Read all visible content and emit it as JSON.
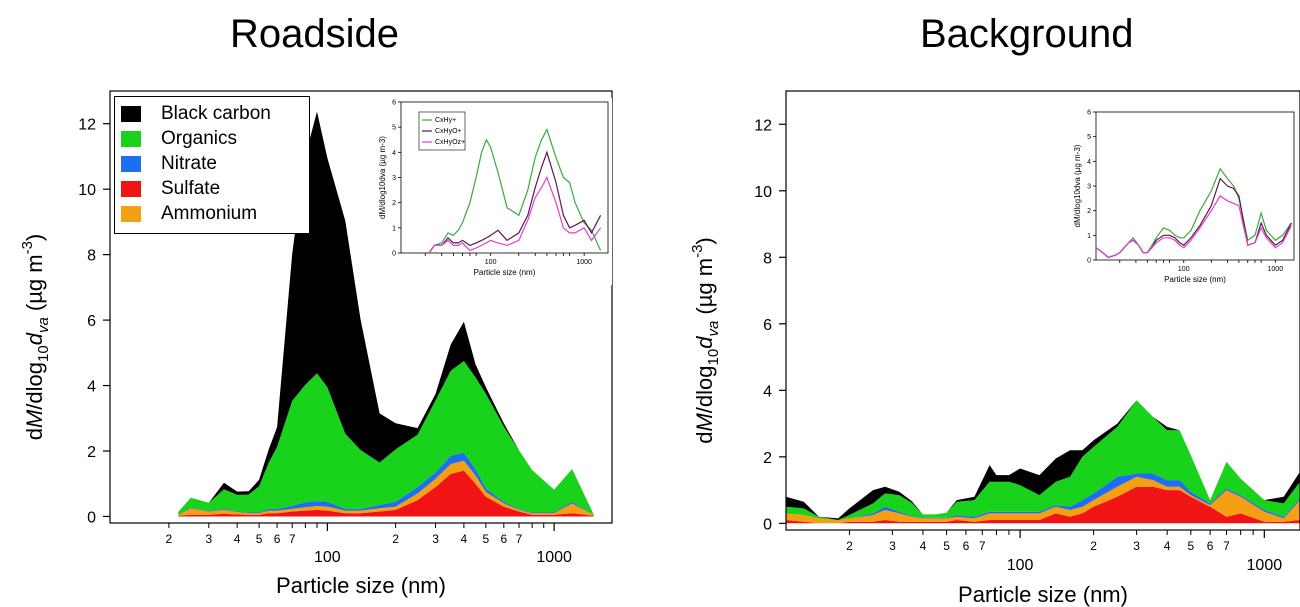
{
  "titles": {
    "left": "Roadside",
    "right": "Background"
  },
  "colors": {
    "black_carbon": "#000000",
    "organics": "#19d21b",
    "nitrate": "#1e6ef0",
    "sulfate": "#f01414",
    "ammonium": "#f5a012",
    "inset_green": "#3aaa3a",
    "inset_purple": "#5a1a4a",
    "inset_magenta": "#e040d0"
  },
  "legend": {
    "items": [
      {
        "key": "black_carbon",
        "label": "Black carbon"
      },
      {
        "key": "organics",
        "label": "Organics"
      },
      {
        "key": "nitrate",
        "label": "Nitrate"
      },
      {
        "key": "sulfate",
        "label": "Sulfate"
      },
      {
        "key": "ammonium",
        "label": "Ammonium"
      }
    ]
  },
  "axes": {
    "xlabel": "Particle size (nm)",
    "ylabel_parts": {
      "d1": "d",
      "M": "M",
      "slash": "/dlog",
      "sub10": "10",
      "d2": "d",
      "va": "va",
      "units": " (µg m",
      "exp": "-3",
      "close": ")"
    },
    "inset_xlabel": "Particle size (nm)",
    "inset_ylabel": "d M/dlog10dva (µg m-3)"
  },
  "chart_data": [
    {
      "type": "area",
      "title": "Roadside",
      "xlabel": "Particle size (nm)",
      "ylabel": "dM/dlog10dva (µg m-3)",
      "xscale": "log",
      "xlim": [
        11,
        1800
      ],
      "ylim": [
        -0.2,
        13
      ],
      "y_ticks": [
        0,
        2,
        4,
        6,
        8,
        10,
        12
      ],
      "x_ticks": [
        100,
        1000
      ],
      "x_minor_labels": [
        "2",
        "3",
        "4",
        "5",
        "6",
        "7",
        "2",
        "3",
        "4",
        "5",
        "6",
        "7"
      ],
      "x_minor_values": [
        20,
        30,
        40,
        50,
        60,
        70,
        200,
        300,
        400,
        500,
        600,
        700
      ],
      "legend_position": "top-left",
      "x": [
        22,
        25,
        30,
        35,
        40,
        45,
        50,
        55,
        60,
        70,
        80,
        90,
        100,
        120,
        140,
        170,
        200,
        250,
        300,
        350,
        400,
        450,
        500,
        600,
        700,
        800,
        1000,
        1200,
        1500
      ],
      "series": [
        {
          "name": "Sulfate",
          "values": [
            0.02,
            0.05,
            0.05,
            0.08,
            0.06,
            0.05,
            0.05,
            0.1,
            0.1,
            0.15,
            0.18,
            0.2,
            0.18,
            0.1,
            0.1,
            0.15,
            0.2,
            0.5,
            0.9,
            1.3,
            1.4,
            1.0,
            0.6,
            0.3,
            0.15,
            0.05,
            0.05,
            0.1,
            0.02
          ]
        },
        {
          "name": "Ammonium",
          "values": [
            0.02,
            0.2,
            0.1,
            0.12,
            0.08,
            0.05,
            0.05,
            0.08,
            0.08,
            0.08,
            0.1,
            0.12,
            0.12,
            0.08,
            0.08,
            0.1,
            0.1,
            0.2,
            0.25,
            0.3,
            0.3,
            0.25,
            0.15,
            0.1,
            0.05,
            0.05,
            0.05,
            0.3,
            0.02
          ]
        },
        {
          "name": "Nitrate",
          "values": [
            0.0,
            0.02,
            0.02,
            0.03,
            0.02,
            0.02,
            0.02,
            0.05,
            0.05,
            0.1,
            0.15,
            0.15,
            0.15,
            0.05,
            0.05,
            0.1,
            0.15,
            0.2,
            0.2,
            0.25,
            0.25,
            0.2,
            0.1,
            0.05,
            0.02,
            0.02,
            0.02,
            0.05,
            0.0
          ]
        },
        {
          "name": "Organics",
          "values": [
            0.1,
            0.3,
            0.25,
            0.6,
            0.5,
            0.55,
            0.8,
            1.4,
            1.9,
            3.2,
            3.6,
            3.9,
            3.5,
            2.3,
            1.8,
            1.3,
            1.6,
            1.6,
            2.2,
            2.6,
            2.8,
            2.8,
            2.9,
            2.3,
            1.8,
            1.3,
            0.7,
            1.0,
            0.0
          ]
        },
        {
          "name": "Black carbon",
          "values": [
            0.0,
            0.0,
            0.0,
            0.2,
            0.1,
            0.1,
            0.2,
            0.4,
            0.6,
            4.5,
            7.0,
            8.0,
            7.0,
            6.5,
            4.0,
            1.5,
            0.8,
            0.2,
            0.2,
            0.8,
            1.2,
            0.4,
            0.2,
            0.1,
            0.0,
            0.0,
            0.0,
            0.0,
            0.0
          ]
        }
      ],
      "inset": {
        "type": "line",
        "xlabel": "Particle size (nm)",
        "ylabel": "dM/dlog10dva (µg m-3)",
        "xscale": "log",
        "xlim": [
          11,
          1800
        ],
        "ylim": [
          0,
          6
        ],
        "y_ticks": [
          0,
          1,
          2,
          3,
          4,
          5,
          6
        ],
        "legend": [
          "CxHy+",
          "CxHyO+",
          "CxHyOz+"
        ],
        "x": [
          22,
          25,
          30,
          35,
          40,
          45,
          50,
          60,
          70,
          80,
          90,
          100,
          120,
          150,
          200,
          250,
          300,
          350,
          400,
          500,
          600,
          700,
          800,
          1000,
          1200,
          1500
        ],
        "series": [
          {
            "name": "CxHy+",
            "values": [
              0.0,
              0.3,
              0.4,
              0.8,
              0.7,
              0.9,
              1.2,
              2.0,
              3.0,
              4.0,
              4.5,
              4.2,
              3.2,
              1.8,
              1.5,
              2.5,
              3.8,
              4.5,
              4.9,
              3.8,
              3.0,
              2.8,
              2.0,
              1.2,
              0.9,
              0.1
            ]
          },
          {
            "name": "CxHyO+",
            "values": [
              0.0,
              0.3,
              0.3,
              0.6,
              0.4,
              0.4,
              0.5,
              0.3,
              0.4,
              0.5,
              0.6,
              0.7,
              0.9,
              0.5,
              0.8,
              1.5,
              2.6,
              3.4,
              4.0,
              2.8,
              1.5,
              1.0,
              1.1,
              1.3,
              0.8,
              1.5
            ]
          },
          {
            "name": "CxHyOz+",
            "values": [
              0.0,
              0.3,
              0.3,
              0.5,
              0.3,
              0.3,
              0.4,
              0.1,
              0.2,
              0.3,
              0.4,
              0.5,
              0.4,
              0.3,
              0.5,
              1.3,
              2.2,
              2.6,
              3.0,
              2.0,
              1.0,
              0.8,
              0.8,
              1.0,
              0.5,
              1.0
            ]
          }
        ]
      }
    },
    {
      "type": "area",
      "title": "Background",
      "xlabel": "Particle size (nm)",
      "ylabel": "dM/dlog10dva (µg m-3)",
      "xscale": "log",
      "xlim": [
        11,
        1400
      ],
      "ylim": [
        -0.2,
        13
      ],
      "y_ticks": [
        0,
        2,
        4,
        6,
        8,
        10,
        12
      ],
      "x_ticks": [
        100,
        1000
      ],
      "x_minor_labels": [
        "2",
        "3",
        "4",
        "5",
        "6",
        "7",
        "2",
        "3",
        "4",
        "5",
        "6",
        "7"
      ],
      "x_minor_values": [
        20,
        30,
        40,
        50,
        60,
        70,
        200,
        300,
        400,
        500,
        600,
        700
      ],
      "x": [
        11,
        13,
        15,
        18,
        20,
        25,
        28,
        32,
        36,
        40,
        45,
        50,
        55,
        65,
        75,
        80,
        90,
        100,
        120,
        140,
        160,
        180,
        200,
        250,
        300,
        350,
        400,
        450,
        500,
        600,
        700,
        800,
        1000,
        1200,
        1400
      ],
      "series": [
        {
          "name": "Sulfate",
          "values": [
            0.1,
            0.05,
            0.0,
            0.0,
            0.05,
            0.05,
            0.1,
            0.05,
            0.05,
            0.05,
            0.05,
            0.05,
            0.1,
            0.05,
            0.1,
            0.1,
            0.1,
            0.1,
            0.1,
            0.3,
            0.2,
            0.3,
            0.5,
            0.8,
            1.1,
            1.1,
            1.0,
            1.0,
            0.8,
            0.5,
            0.2,
            0.3,
            0.05,
            0.05,
            0.1
          ]
        },
        {
          "name": "Ammonium",
          "values": [
            0.2,
            0.2,
            0.15,
            0.1,
            0.1,
            0.2,
            0.3,
            0.25,
            0.15,
            0.1,
            0.1,
            0.1,
            0.1,
            0.1,
            0.2,
            0.2,
            0.2,
            0.2,
            0.2,
            0.2,
            0.2,
            0.2,
            0.2,
            0.3,
            0.3,
            0.2,
            0.1,
            0.1,
            0.05,
            0.05,
            0.8,
            0.5,
            0.3,
            0.1,
            0.6
          ]
        },
        {
          "name": "Nitrate",
          "values": [
            0.0,
            0.0,
            0.0,
            0.0,
            0.0,
            0.05,
            0.1,
            0.05,
            0.02,
            0.02,
            0.02,
            0.02,
            0.05,
            0.05,
            0.05,
            0.05,
            0.05,
            0.05,
            0.05,
            0.05,
            0.1,
            0.2,
            0.2,
            0.3,
            0.1,
            0.2,
            0.2,
            0.2,
            0.1,
            0.05,
            0.05,
            0.05,
            0.05,
            0.05,
            0.05
          ]
        },
        {
          "name": "Organics",
          "values": [
            0.2,
            0.2,
            0.05,
            0.0,
            0.1,
            0.3,
            0.4,
            0.5,
            0.4,
            0.1,
            0.1,
            0.15,
            0.4,
            0.5,
            0.9,
            0.9,
            0.9,
            0.8,
            0.5,
            0.7,
            0.9,
            1.3,
            1.4,
            1.5,
            2.2,
            1.7,
            1.5,
            1.5,
            1.1,
            0.1,
            0.8,
            0.5,
            0.3,
            0.4,
            0.5
          ]
        },
        {
          "name": "Black carbon",
          "values": [
            0.3,
            0.2,
            0.0,
            0.05,
            0.2,
            0.4,
            0.2,
            0.1,
            0.05,
            0.0,
            0.0,
            0.0,
            0.05,
            0.1,
            0.5,
            0.2,
            0.2,
            0.5,
            0.6,
            0.7,
            0.8,
            0.2,
            0.2,
            0.1,
            0.0,
            0.0,
            0.1,
            0.0,
            0.0,
            0.0,
            0.0,
            0.0,
            0.0,
            0.2,
            0.3
          ]
        }
      ],
      "inset": {
        "type": "line",
        "xlabel": "Particle size (nm)",
        "ylabel": "dM/dlog10dva (µg m-3)",
        "xscale": "log",
        "xlim": [
          11,
          1600
        ],
        "ylim": [
          0,
          6
        ],
        "y_ticks": [
          0,
          1,
          2,
          3,
          4,
          5,
          6
        ],
        "x": [
          11,
          13,
          15,
          18,
          20,
          25,
          28,
          32,
          36,
          40,
          45,
          50,
          60,
          70,
          80,
          90,
          100,
          120,
          150,
          200,
          250,
          300,
          350,
          400,
          500,
          600,
          700,
          800,
          1000,
          1200,
          1500
        ],
        "series": [
          {
            "name": "CxHy+",
            "values": [
              0.5,
              0.3,
              0.1,
              0.2,
              0.3,
              0.7,
              0.9,
              0.6,
              0.3,
              0.3,
              0.6,
              0.9,
              1.3,
              1.2,
              1.0,
              0.9,
              0.9,
              1.2,
              2.0,
              2.8,
              3.7,
              3.3,
              3.0,
              2.5,
              0.8,
              1.0,
              1.9,
              1.2,
              0.8,
              1.0,
              1.5
            ]
          },
          {
            "name": "CxHyO+",
            "values": [
              0.5,
              0.3,
              0.1,
              0.2,
              0.3,
              0.7,
              0.8,
              0.6,
              0.3,
              0.3,
              0.5,
              0.8,
              1.0,
              1.0,
              0.9,
              0.7,
              0.6,
              0.9,
              1.4,
              2.2,
              3.3,
              3.0,
              2.9,
              2.6,
              0.6,
              0.7,
              1.5,
              1.0,
              0.6,
              0.8,
              1.5
            ]
          },
          {
            "name": "CxHyOz+",
            "values": [
              0.5,
              0.3,
              0.1,
              0.2,
              0.3,
              0.7,
              0.8,
              0.6,
              0.3,
              0.3,
              0.5,
              0.7,
              0.9,
              0.9,
              0.8,
              0.6,
              0.5,
              0.8,
              1.3,
              2.0,
              2.6,
              2.4,
              2.3,
              2.2,
              0.6,
              0.7,
              1.3,
              0.9,
              0.5,
              0.7,
              1.4
            ]
          }
        ]
      }
    }
  ]
}
